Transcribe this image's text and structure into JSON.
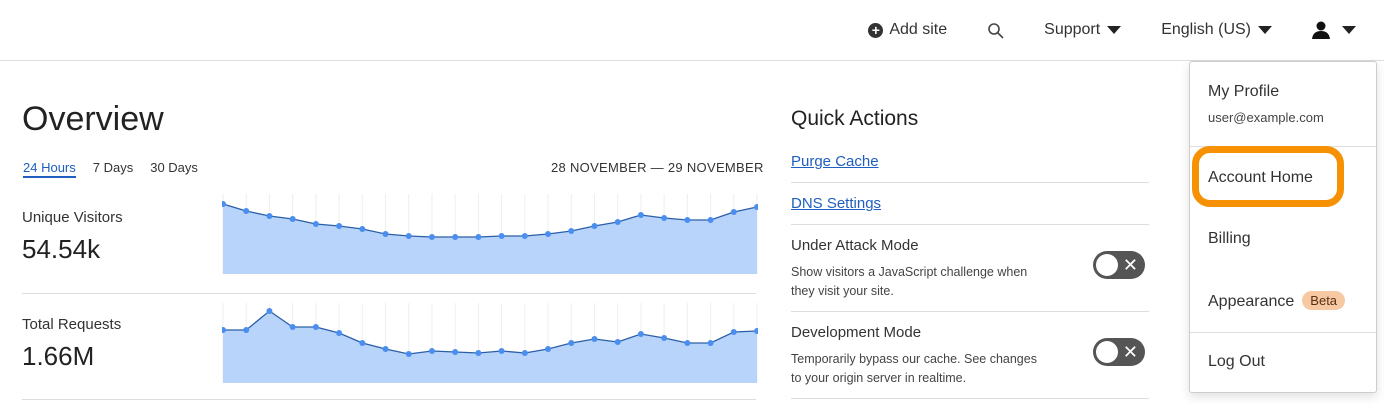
{
  "topbar": {
    "add_site": "Add site",
    "support": "Support",
    "language": "English (US)",
    "icons": {
      "add": "plus-circle-icon",
      "search": "search-icon",
      "user": "user-icon"
    }
  },
  "overview": {
    "title": "Overview",
    "tabs": [
      {
        "label": "24 Hours",
        "active": true
      },
      {
        "label": "7 Days"
      },
      {
        "label": "30 Days"
      }
    ],
    "date_range": "28 NOVEMBER — 29 NOVEMBER"
  },
  "metrics": [
    {
      "label": "Unique Visitors",
      "value": "54.54k"
    },
    {
      "label": "Total Requests",
      "value": "1.66M"
    }
  ],
  "chart_data": [
    {
      "type": "area",
      "title": "",
      "values": [
        70,
        63,
        58,
        55,
        50,
        48,
        45,
        40,
        38,
        37,
        37,
        37,
        38,
        38,
        40,
        43,
        48,
        52,
        59,
        56,
        54,
        54,
        62,
        67
      ],
      "color": "#4a8ef0",
      "fill": "#b8d4fa"
    },
    {
      "type": "area",
      "title": "",
      "values": [
        53,
        53,
        72,
        56,
        56,
        50,
        40,
        34,
        29,
        32,
        31,
        30,
        32,
        30,
        34,
        40,
        44,
        41,
        49,
        45,
        40,
        40,
        51,
        52
      ],
      "color": "#4a8ef0",
      "fill": "#b8d4fa"
    }
  ],
  "quick_actions": {
    "title": "Quick Actions",
    "links": [
      "Purge Cache",
      "DNS Settings"
    ],
    "modes": [
      {
        "title": "Under Attack Mode",
        "desc": "Show visitors a JavaScript challenge when they visit your site.",
        "on": false
      },
      {
        "title": "Development Mode",
        "desc": "Temporarily bypass our cache. See changes to your origin server in realtime.",
        "on": false
      }
    ]
  },
  "menu": {
    "profile": "My Profile",
    "email": "user@example.com",
    "account_home": "Account Home",
    "billing": "Billing",
    "appearance": "Appearance",
    "beta": "Beta",
    "logout": "Log Out",
    "highlight_color": "#f79104"
  }
}
